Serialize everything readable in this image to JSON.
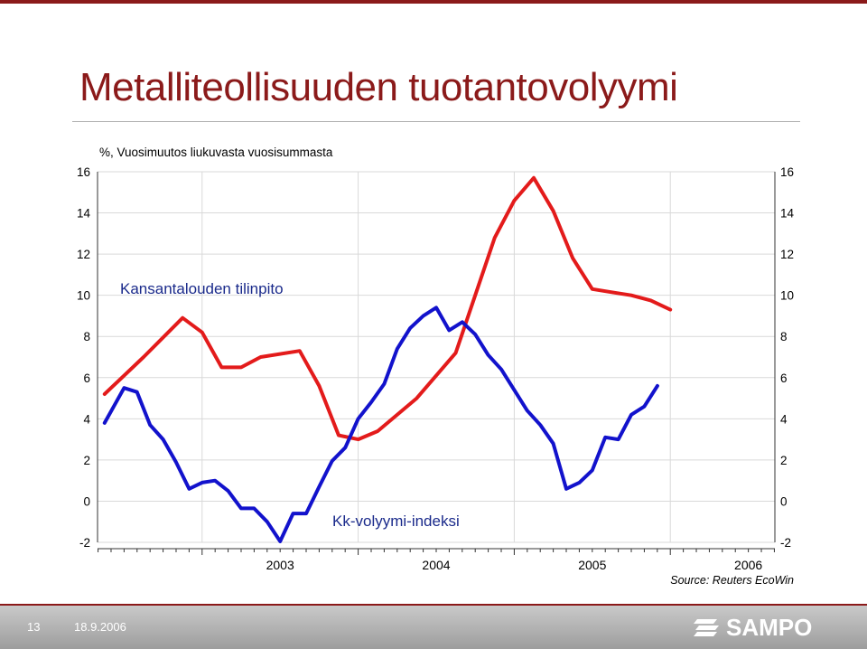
{
  "slide": {
    "title": "Metalliteollisuuden tuotantovolyymi",
    "number": "13",
    "date": "18.9.2006",
    "logo_text": "SAMPO"
  },
  "colors": {
    "accent": "#8b1a1a",
    "series_red": "#e31b1b",
    "series_blue": "#1212cc"
  },
  "chart_data": {
    "type": "line",
    "title": "",
    "ylabel": "%, Vuosimuutos liukuvasta vuosisummasta",
    "xlabel": "",
    "source": "Source: Reuters EcoWin",
    "ylim": [
      -2,
      16
    ],
    "yticks": [
      "-2",
      "0",
      "2",
      "4",
      "6",
      "8",
      "10",
      "12",
      "14",
      "16"
    ],
    "xlim": [
      2002.33,
      2006.67
    ],
    "x_year_labels": [
      "2003",
      "2004",
      "2005",
      "2006"
    ],
    "series": [
      {
        "name": "Kansantalouden tilinpito",
        "color": "#e31b1b",
        "points": [
          [
            2002.375,
            5.2
          ],
          [
            2002.625,
            7.0
          ],
          [
            2002.875,
            8.9
          ],
          [
            2003.0,
            8.2
          ],
          [
            2003.125,
            6.5
          ],
          [
            2003.25,
            6.5
          ],
          [
            2003.375,
            7.0
          ],
          [
            2003.625,
            7.3
          ],
          [
            2003.75,
            5.6
          ],
          [
            2003.875,
            3.2
          ],
          [
            2004.0,
            3.0
          ],
          [
            2004.125,
            3.4
          ],
          [
            2004.375,
            5.0
          ],
          [
            2004.625,
            7.2
          ],
          [
            2004.75,
            10.0
          ],
          [
            2004.875,
            12.8
          ],
          [
            2005.0,
            14.6
          ],
          [
            2005.125,
            15.7
          ],
          [
            2005.25,
            14.1
          ],
          [
            2005.375,
            11.8
          ],
          [
            2005.5,
            10.3
          ],
          [
            2005.625,
            10.15
          ],
          [
            2005.75,
            10.0
          ],
          [
            2005.875,
            9.75
          ],
          [
            2006.0,
            9.3
          ]
        ]
      },
      {
        "name": "Kk-volyymi-indeksi",
        "color": "#1212cc",
        "points": [
          [
            2002.375,
            3.8
          ],
          [
            2002.5,
            5.5
          ],
          [
            2002.583,
            5.3
          ],
          [
            2002.667,
            3.7
          ],
          [
            2002.75,
            3.0
          ],
          [
            2002.833,
            1.9
          ],
          [
            2002.917,
            0.6
          ],
          [
            2003.0,
            0.9
          ],
          [
            2003.083,
            1.0
          ],
          [
            2003.167,
            0.5
          ],
          [
            2003.25,
            -0.35
          ],
          [
            2003.333,
            -0.35
          ],
          [
            2003.417,
            -1.0
          ],
          [
            2003.5,
            -1.95
          ],
          [
            2003.583,
            -0.6
          ],
          [
            2003.667,
            -0.6
          ],
          [
            2003.75,
            0.7
          ],
          [
            2003.833,
            1.95
          ],
          [
            2003.917,
            2.6
          ],
          [
            2004.0,
            4.0
          ],
          [
            2004.083,
            4.8
          ],
          [
            2004.167,
            5.7
          ],
          [
            2004.25,
            7.4
          ],
          [
            2004.333,
            8.4
          ],
          [
            2004.417,
            9.0
          ],
          [
            2004.5,
            9.4
          ],
          [
            2004.583,
            8.3
          ],
          [
            2004.667,
            8.7
          ],
          [
            2004.75,
            8.1
          ],
          [
            2004.833,
            7.1
          ],
          [
            2004.917,
            6.4
          ],
          [
            2005.0,
            5.4
          ],
          [
            2005.083,
            4.4
          ],
          [
            2005.167,
            3.7
          ],
          [
            2005.25,
            2.8
          ],
          [
            2005.333,
            0.6
          ],
          [
            2005.417,
            0.9
          ],
          [
            2005.5,
            1.5
          ],
          [
            2005.583,
            3.1
          ],
          [
            2005.667,
            3.0
          ],
          [
            2005.75,
            4.2
          ],
          [
            2005.833,
            4.6
          ],
          [
            2005.917,
            5.6
          ]
        ]
      }
    ],
    "annotations": [
      "Kansantalouden tilinpito",
      "Kk-volyymi-indeksi"
    ]
  }
}
